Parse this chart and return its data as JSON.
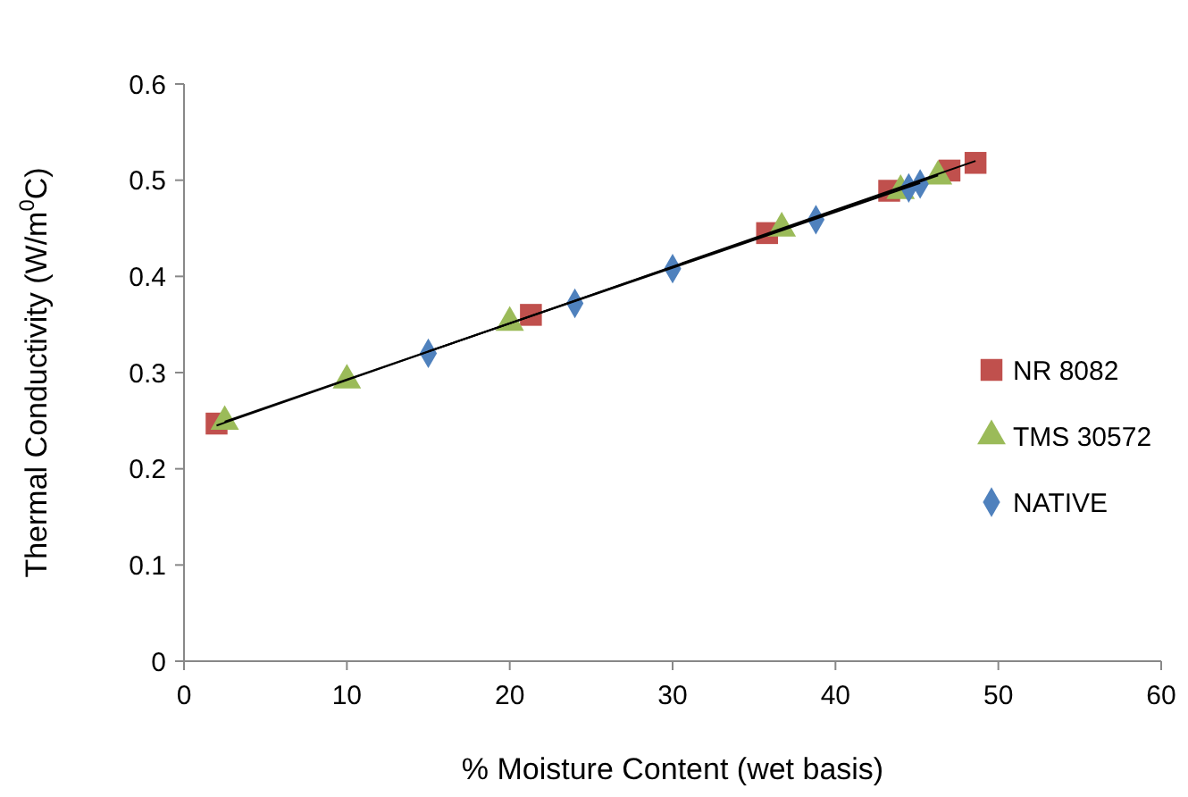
{
  "chart_data": {
    "type": "scatter",
    "xlabel": "% Moisture Content (wet basis)",
    "ylabel": "Thermal Conductivity (W/m$^{0}$C)",
    "xlim": [
      0,
      60
    ],
    "xticks": [
      0,
      10,
      20,
      30,
      40,
      50,
      60
    ],
    "ylim": [
      0,
      0.6
    ],
    "yticks": [
      0,
      0.1,
      0.2,
      0.3,
      0.4,
      0.5,
      0.6
    ],
    "legend": "right",
    "grid": false,
    "series": [
      {
        "name": "NR 8082",
        "color": "#c0504d",
        "marker": "square",
        "x": [
          2,
          21.3,
          35.8,
          43.3,
          47,
          48.6
        ],
        "values": [
          0.247,
          0.36,
          0.445,
          0.489,
          0.51,
          0.518
        ]
      },
      {
        "name": "TMS 30572",
        "color": "#9bbb59",
        "marker": "triangle",
        "x": [
          2.5,
          10,
          20,
          36.7,
          44,
          46.3
        ],
        "values": [
          0.249,
          0.292,
          0.352,
          0.45,
          0.489,
          0.504
        ]
      },
      {
        "name": "NATIVE",
        "color": "#4f81bd",
        "marker": "diamond",
        "x": [
          15,
          24,
          30,
          38.8,
          44.5,
          45.2
        ],
        "values": [
          0.32,
          0.372,
          0.408,
          0.459,
          0.492,
          0.496
        ]
      },
      {
        "type": "line",
        "color": "#000000",
        "marker": "none",
        "x": [
          2,
          48.6
        ],
        "values": [
          0.245,
          0.52
        ]
      },
      {
        "type": "line",
        "color": "#000000",
        "marker": "none",
        "x": [
          2.5,
          46.3
        ],
        "values": [
          0.249,
          0.505
        ]
      },
      {
        "type": "line",
        "color": "#000000",
        "marker": "none",
        "x": [
          15,
          45.2
        ],
        "values": [
          0.322,
          0.497
        ]
      }
    ]
  }
}
